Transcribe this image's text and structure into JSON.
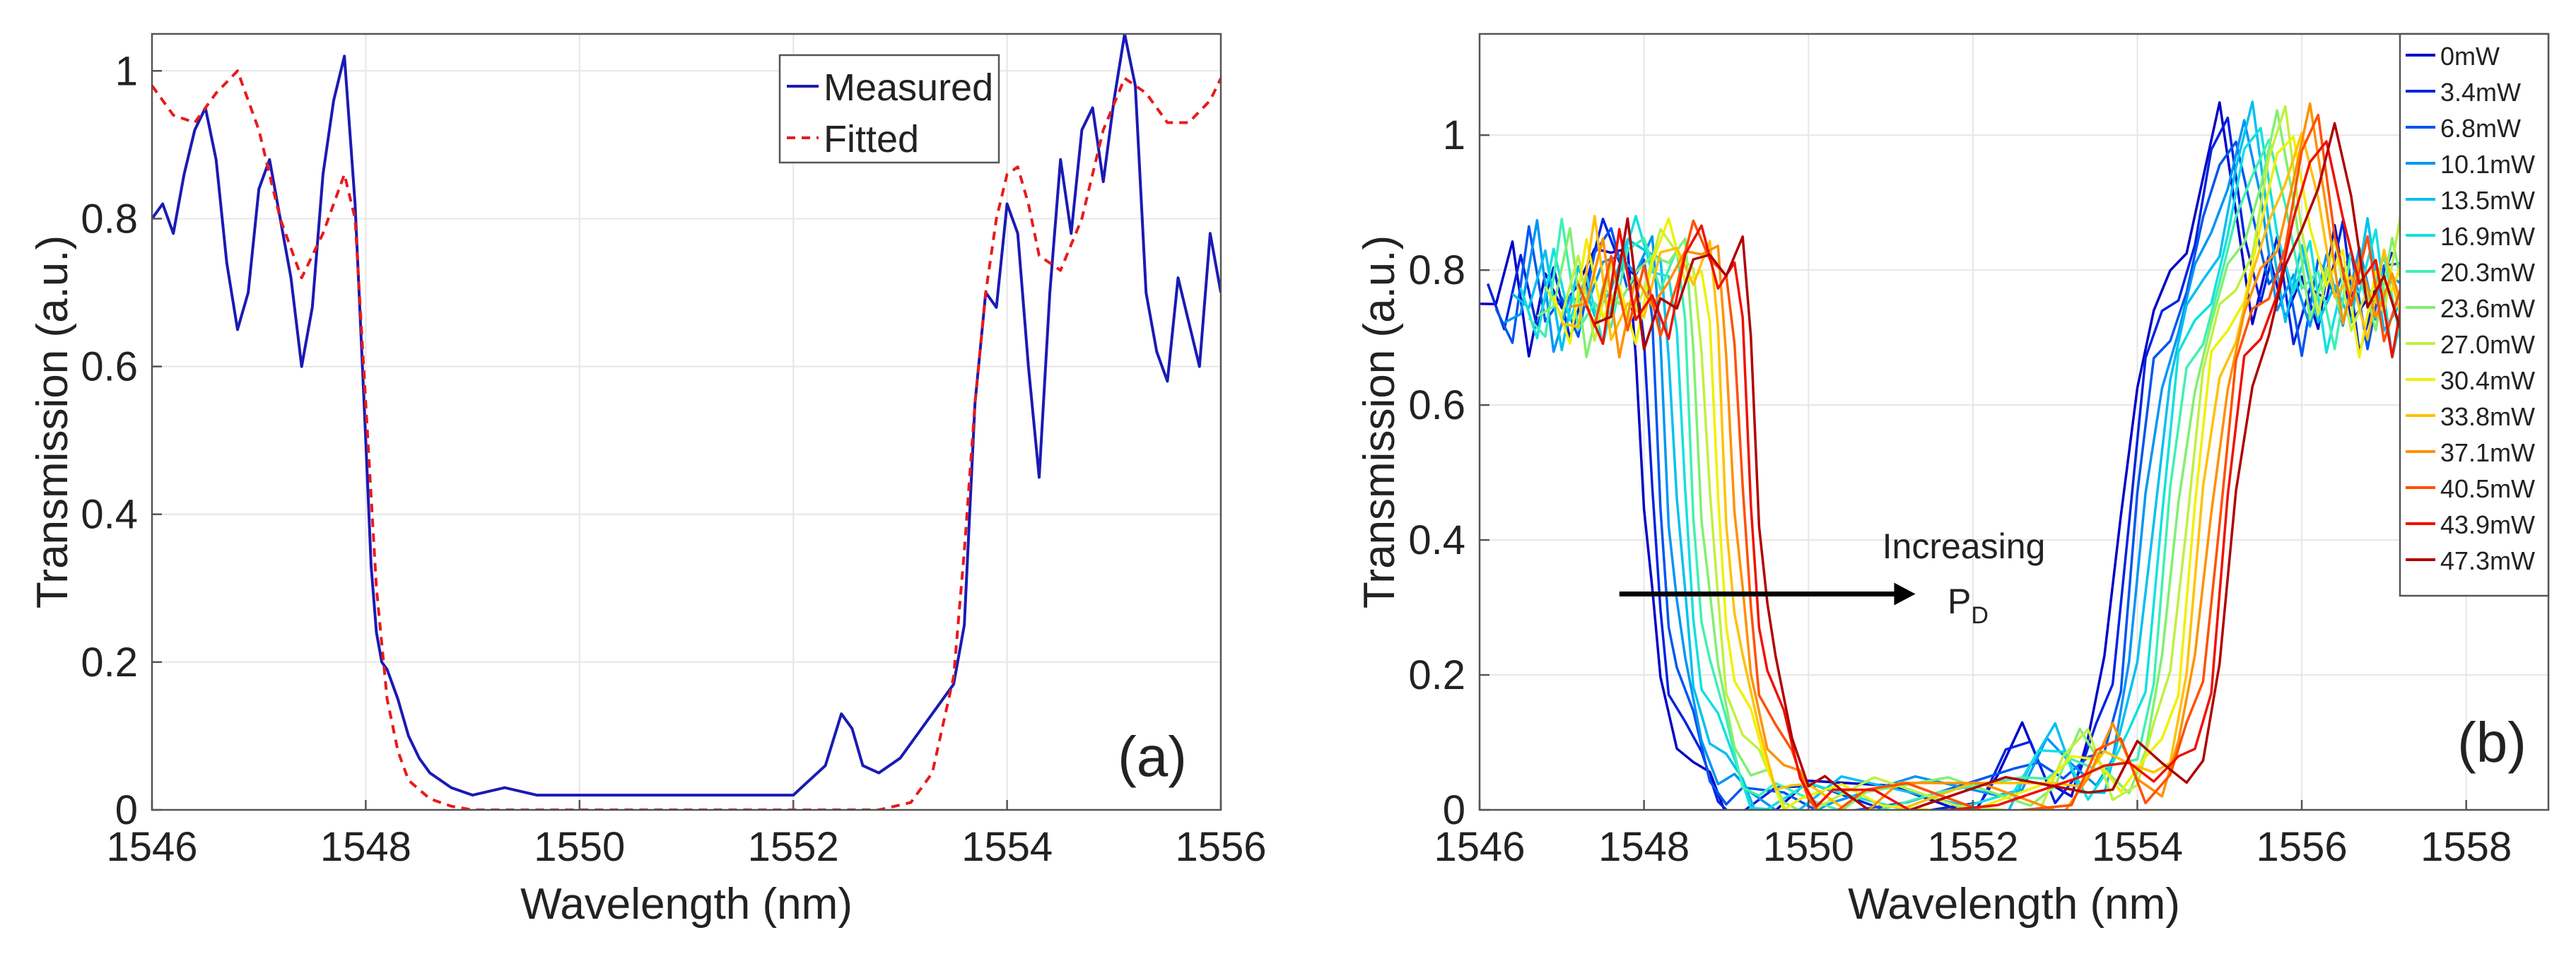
{
  "chart_data": [
    {
      "type": "line",
      "panel_label": "(a)",
      "xlabel": "Wavelength (nm)",
      "ylabel": "Transmission (a.u.)",
      "xlim": [
        1546,
        1556
      ],
      "ylim": [
        0,
        1.05
      ],
      "xticks": [
        1546,
        1548,
        1550,
        1552,
        1554,
        1556
      ],
      "yticks": [
        0,
        0.2,
        0.4,
        0.6,
        0.8,
        1
      ],
      "xtick_labels": [
        "1546",
        "1548",
        "1550",
        "1552",
        "1554",
        "1556"
      ],
      "ytick_labels": [
        "0",
        "0.2",
        "0.4",
        "0.6",
        "0.8",
        "1"
      ],
      "grid": true,
      "legend_position": "top-right",
      "series": [
        {
          "name": "Measured",
          "color": "#1a1ab5",
          "style": "solid",
          "x": [
            1546.0,
            1546.1,
            1546.2,
            1546.3,
            1546.4,
            1546.5,
            1546.6,
            1546.7,
            1546.8,
            1546.9,
            1547.0,
            1547.1,
            1547.2,
            1547.3,
            1547.4,
            1547.5,
            1547.6,
            1547.7,
            1547.8,
            1547.9,
            1548.0,
            1548.05,
            1548.1,
            1548.15,
            1548.2,
            1548.3,
            1548.4,
            1548.5,
            1548.6,
            1548.8,
            1549.0,
            1549.3,
            1549.6,
            1550.0,
            1550.5,
            1551.0,
            1551.5,
            1552.0,
            1552.3,
            1552.45,
            1552.55,
            1552.65,
            1552.8,
            1553.0,
            1553.2,
            1553.4,
            1553.5,
            1553.6,
            1553.7,
            1553.8,
            1553.9,
            1554.0,
            1554.1,
            1554.2,
            1554.3,
            1554.4,
            1554.5,
            1554.6,
            1554.7,
            1554.8,
            1554.9,
            1555.0,
            1555.1,
            1555.2,
            1555.3,
            1555.4,
            1555.5,
            1555.6,
            1555.7,
            1555.8,
            1555.9,
            1556.0
          ],
          "y": [
            0.8,
            0.82,
            0.78,
            0.86,
            0.92,
            0.95,
            0.88,
            0.74,
            0.65,
            0.7,
            0.84,
            0.88,
            0.8,
            0.72,
            0.6,
            0.68,
            0.86,
            0.96,
            1.02,
            0.82,
            0.5,
            0.33,
            0.24,
            0.2,
            0.19,
            0.15,
            0.1,
            0.07,
            0.05,
            0.03,
            0.02,
            0.03,
            0.02,
            0.02,
            0.02,
            0.02,
            0.02,
            0.02,
            0.06,
            0.13,
            0.11,
            0.06,
            0.05,
            0.07,
            0.11,
            0.15,
            0.17,
            0.25,
            0.55,
            0.7,
            0.68,
            0.82,
            0.78,
            0.6,
            0.45,
            0.7,
            0.88,
            0.78,
            0.92,
            0.95,
            0.85,
            0.96,
            1.05,
            0.98,
            0.7,
            0.62,
            0.58,
            0.72,
            0.66,
            0.6,
            0.78,
            0.7
          ]
        },
        {
          "name": "Fitted",
          "color": "#e81b1b",
          "style": "dashed",
          "x": [
            1546.0,
            1546.2,
            1546.4,
            1546.6,
            1546.8,
            1547.0,
            1547.2,
            1547.4,
            1547.6,
            1547.8,
            1547.9,
            1548.0,
            1548.1,
            1548.2,
            1548.3,
            1548.4,
            1548.6,
            1548.8,
            1549.0,
            1550.0,
            1551.0,
            1552.0,
            1552.8,
            1553.1,
            1553.3,
            1553.5,
            1553.6,
            1553.7,
            1553.8,
            1553.9,
            1554.0,
            1554.1,
            1554.2,
            1554.3,
            1554.5,
            1554.7,
            1554.9,
            1555.1,
            1555.3,
            1555.5,
            1555.7,
            1555.9,
            1556.0
          ],
          "y": [
            0.98,
            0.94,
            0.93,
            0.97,
            1.0,
            0.92,
            0.8,
            0.72,
            0.78,
            0.86,
            0.8,
            0.55,
            0.3,
            0.15,
            0.08,
            0.04,
            0.015,
            0.005,
            0.0,
            0.0,
            0.0,
            0.0,
            0.0,
            0.01,
            0.05,
            0.18,
            0.35,
            0.55,
            0.7,
            0.8,
            0.86,
            0.87,
            0.82,
            0.75,
            0.73,
            0.8,
            0.92,
            0.99,
            0.97,
            0.93,
            0.93,
            0.96,
            0.99
          ]
        }
      ],
      "legend_entries": [
        "Measured",
        "Fitted"
      ]
    },
    {
      "type": "line",
      "panel_label": "(b)",
      "xlabel": "Wavelength (nm)",
      "ylabel": "Transmission (a.u.)",
      "xlim": [
        1546,
        1559
      ],
      "ylim": [
        0,
        1.15
      ],
      "xticks": [
        1546,
        1548,
        1550,
        1552,
        1554,
        1556,
        1558
      ],
      "yticks": [
        0,
        0.2,
        0.4,
        0.6,
        0.8,
        1
      ],
      "xtick_labels": [
        "1546",
        "1548",
        "1550",
        "1552",
        "1554",
        "1556",
        "1558"
      ],
      "ytick_labels": [
        "0",
        "0.2",
        "0.4",
        "0.6",
        "0.8",
        "1"
      ],
      "grid": true,
      "legend_position": "top-right",
      "annotation": {
        "text": "Increasing",
        "subtext": "P",
        "subscript": "D",
        "arrow_from_x": 1547.7,
        "arrow_to_x": 1551.3,
        "arrow_y": 0.32
      },
      "series_shift_step_nm": 0.1,
      "base_curve": {
        "x": [
          1546.0,
          1546.2,
          1546.4,
          1546.6,
          1546.8,
          1547.0,
          1547.2,
          1547.4,
          1547.6,
          1547.8,
          1547.9,
          1548.0,
          1548.1,
          1548.2,
          1548.4,
          1548.6,
          1548.8,
          1549.0,
          1549.5,
          1550.0,
          1551.0,
          1552.0,
          1552.3,
          1552.6,
          1552.9,
          1553.2,
          1553.4,
          1553.6,
          1553.8,
          1554.0,
          1554.2,
          1554.4,
          1554.6,
          1554.8,
          1555.0,
          1555.2,
          1555.4,
          1555.6,
          1555.8,
          1556.0,
          1556.2,
          1556.4,
          1556.6,
          1556.8,
          1557.0
        ],
        "y": [
          0.75,
          0.72,
          0.85,
          0.7,
          0.78,
          0.72,
          0.8,
          0.85,
          0.8,
          0.82,
          0.7,
          0.45,
          0.3,
          0.2,
          0.12,
          0.06,
          0.03,
          0.01,
          0.01,
          0.02,
          0.02,
          0.02,
          0.06,
          0.1,
          0.04,
          0.05,
          0.1,
          0.2,
          0.45,
          0.65,
          0.72,
          0.78,
          0.85,
          0.95,
          1.02,
          0.88,
          0.75,
          0.82,
          0.7,
          0.8,
          0.74,
          0.85,
          0.7,
          0.78,
          0.8
        ]
      },
      "series": [
        {
          "name": "0mW",
          "color": "#0000c8"
        },
        {
          "name": "3.4mW",
          "color": "#0023e0"
        },
        {
          "name": "6.8mW",
          "color": "#0055f0"
        },
        {
          "name": "10.1mW",
          "color": "#0095f5"
        },
        {
          "name": "13.5mW",
          "color": "#00c0f0"
        },
        {
          "name": "16.9mW",
          "color": "#10e0e0"
        },
        {
          "name": "20.3mW",
          "color": "#40f0b0"
        },
        {
          "name": "23.6mW",
          "color": "#80f070"
        },
        {
          "name": "27.0mW",
          "color": "#c0f040"
        },
        {
          "name": "30.4mW",
          "color": "#f0f000"
        },
        {
          "name": "33.8mW",
          "color": "#ffc000"
        },
        {
          "name": "37.1mW",
          "color": "#ff9000"
        },
        {
          "name": "40.5mW",
          "color": "#ff5000"
        },
        {
          "name": "43.9mW",
          "color": "#f01000"
        },
        {
          "name": "47.3mW",
          "color": "#b00000"
        }
      ]
    }
  ]
}
